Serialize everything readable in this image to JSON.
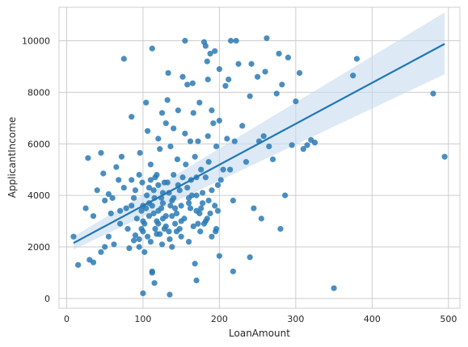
{
  "chart_data": {
    "type": "scatter",
    "title": "",
    "xlabel": "LoanAmount",
    "ylabel": "ApplicantIncome",
    "xlim": [
      -10,
      515
    ],
    "ylim": [
      -380,
      11300
    ],
    "xticks": [
      0,
      100,
      200,
      300,
      400,
      500
    ],
    "yticks": [
      0,
      2000,
      4000,
      6000,
      8000,
      10000
    ],
    "grid": true,
    "point_color": "#2a7ab5",
    "line_color": "#1f77b4",
    "band_color": "#c6dbef",
    "regression": {
      "x": [
        9,
        495
      ],
      "y": [
        2150,
        9880
      ],
      "ci_lower": [
        1900,
        8700
      ],
      "ci_upper": [
        2400,
        11100
      ]
    },
    "points": [
      [
        9,
        2400
      ],
      [
        15,
        1300
      ],
      [
        25,
        3500
      ],
      [
        28,
        5450
      ],
      [
        30,
        1500
      ],
      [
        35,
        1400
      ],
      [
        35,
        3200
      ],
      [
        40,
        4200
      ],
      [
        45,
        5650
      ],
      [
        45,
        1800
      ],
      [
        48,
        4850
      ],
      [
        50,
        2000
      ],
      [
        50,
        3800
      ],
      [
        55,
        4050
      ],
      [
        55,
        2400
      ],
      [
        58,
        3300
      ],
      [
        60,
        3900
      ],
      [
        62,
        2100
      ],
      [
        65,
        5100
      ],
      [
        68,
        4600
      ],
      [
        70,
        3400
      ],
      [
        70,
        2900
      ],
      [
        72,
        5500
      ],
      [
        75,
        9300
      ],
      [
        75,
        4300
      ],
      [
        78,
        3500
      ],
      [
        80,
        2700
      ],
      [
        82,
        1950
      ],
      [
        85,
        7050
      ],
      [
        85,
        3600
      ],
      [
        85,
        4600
      ],
      [
        88,
        2250
      ],
      [
        88,
        3900
      ],
      [
        90,
        2450
      ],
      [
        90,
        4200
      ],
      [
        92,
        3100
      ],
      [
        95,
        4800
      ],
      [
        95,
        2000
      ],
      [
        96,
        5650
      ],
      [
        98,
        3400
      ],
      [
        99,
        4500
      ],
      [
        100,
        3000
      ],
      [
        100,
        200
      ],
      [
        100,
        2600
      ],
      [
        102,
        1800
      ],
      [
        104,
        7600
      ],
      [
        105,
        4000
      ],
      [
        106,
        6500
      ],
      [
        108,
        3700
      ],
      [
        110,
        2200
      ],
      [
        110,
        5200
      ],
      [
        112,
        1050
      ],
      [
        112,
        1000
      ],
      [
        112,
        9700
      ],
      [
        114,
        3300
      ],
      [
        115,
        600
      ],
      [
        115,
        3900
      ],
      [
        116,
        4700
      ],
      [
        118,
        2500
      ],
      [
        120,
        6200
      ],
      [
        120,
        2900
      ],
      [
        120,
        4400
      ],
      [
        122,
        5800
      ],
      [
        124,
        3500
      ],
      [
        125,
        2100
      ],
      [
        125,
        7200
      ],
      [
        126,
        4100
      ],
      [
        128,
        2700
      ],
      [
        130,
        6800
      ],
      [
        130,
        3200
      ],
      [
        132,
        4500
      ],
      [
        132,
        7700
      ],
      [
        133,
        8750
      ],
      [
        135,
        2300
      ],
      [
        135,
        150
      ],
      [
        136,
        5900
      ],
      [
        138,
        3800
      ],
      [
        138,
        2000
      ],
      [
        140,
        6600
      ],
      [
        140,
        4800
      ],
      [
        142,
        3500
      ],
      [
        144,
        2600
      ],
      [
        145,
        5400
      ],
      [
        146,
        7300
      ],
      [
        148,
        4200
      ],
      [
        150,
        3000
      ],
      [
        150,
        2400
      ],
      [
        152,
        8600
      ],
      [
        155,
        6400
      ],
      [
        155,
        10000
      ],
      [
        156,
        5200
      ],
      [
        158,
        8300
      ],
      [
        160,
        3900
      ],
      [
        160,
        2200
      ],
      [
        162,
        6100
      ],
      [
        163,
        4600
      ],
      [
        165,
        8350
      ],
      [
        166,
        7200
      ],
      [
        168,
        5500
      ],
      [
        168,
        1350
      ],
      [
        170,
        3400
      ],
      [
        170,
        4000
      ],
      [
        170,
        700
      ],
      [
        172,
        6100
      ],
      [
        174,
        7600
      ],
      [
        175,
        2600
      ],
      [
        176,
        5000
      ],
      [
        178,
        3700
      ],
      [
        180,
        2900
      ],
      [
        180,
        9950
      ],
      [
        182,
        9800
      ],
      [
        182,
        4700
      ],
      [
        184,
        9200
      ],
      [
        185,
        6300
      ],
      [
        185,
        8500
      ],
      [
        186,
        5300
      ],
      [
        188,
        3300
      ],
      [
        188,
        9500
      ],
      [
        190,
        4200
      ],
      [
        190,
        7300
      ],
      [
        192,
        6800
      ],
      [
        194,
        9600
      ],
      [
        195,
        2600
      ],
      [
        196,
        5900
      ],
      [
        198,
        3400
      ],
      [
        200,
        6900
      ],
      [
        200,
        8900
      ],
      [
        200,
        1650
      ],
      [
        202,
        4600
      ],
      [
        205,
        5000
      ],
      [
        208,
        8250
      ],
      [
        210,
        6200
      ],
      [
        212,
        8500
      ],
      [
        214,
        5000
      ],
      [
        215,
        10000
      ],
      [
        218,
        3800
      ],
      [
        218,
        1050
      ],
      [
        220,
        6100
      ],
      [
        222,
        10000
      ],
      [
        225,
        9100
      ],
      [
        230,
        6700
      ],
      [
        235,
        5300
      ],
      [
        240,
        7850
      ],
      [
        240,
        1600
      ],
      [
        242,
        9100
      ],
      [
        245,
        3500
      ],
      [
        250,
        8600
      ],
      [
        252,
        6100
      ],
      [
        255,
        3100
      ],
      [
        258,
        6300
      ],
      [
        260,
        8800
      ],
      [
        262,
        10100
      ],
      [
        265,
        5900
      ],
      [
        270,
        5400
      ],
      [
        275,
        7950
      ],
      [
        278,
        9500
      ],
      [
        280,
        2700
      ],
      [
        282,
        8300
      ],
      [
        286,
        4000
      ],
      [
        290,
        9350
      ],
      [
        295,
        5950
      ],
      [
        300,
        7650
      ],
      [
        305,
        8750
      ],
      [
        310,
        5800
      ],
      [
        315,
        5950
      ],
      [
        320,
        6150
      ],
      [
        325,
        6050
      ],
      [
        350,
        400
      ],
      [
        375,
        8650
      ],
      [
        380,
        9300
      ],
      [
        480,
        7950
      ],
      [
        495,
        5500
      ],
      [
        95,
        2300
      ],
      [
        102,
        2900
      ],
      [
        108,
        4300
      ],
      [
        112,
        3600
      ],
      [
        118,
        3000
      ],
      [
        122,
        2500
      ],
      [
        126,
        3700
      ],
      [
        130,
        2800
      ],
      [
        134,
        4100
      ],
      [
        138,
        3200
      ],
      [
        142,
        2900
      ],
      [
        146,
        4400
      ],
      [
        150,
        3600
      ],
      [
        154,
        3100
      ],
      [
        158,
        4300
      ],
      [
        162,
        3500
      ],
      [
        166,
        2800
      ],
      [
        170,
        4700
      ],
      [
        174,
        3300
      ],
      [
        178,
        4100
      ],
      [
        182,
        3000
      ],
      [
        186,
        3800
      ],
      [
        190,
        2400
      ],
      [
        194,
        3600
      ],
      [
        198,
        4400
      ],
      [
        104,
        3500
      ],
      [
        114,
        4200
      ],
      [
        124,
        3900
      ],
      [
        134,
        2600
      ],
      [
        144,
        3300
      ],
      [
        98,
        2700
      ],
      [
        108,
        3200
      ],
      [
        118,
        4800
      ],
      [
        128,
        4500
      ],
      [
        140,
        3900
      ],
      [
        152,
        4700
      ],
      [
        164,
        4000
      ],
      [
        176,
        3500
      ],
      [
        106,
        2400
      ],
      [
        116,
        2700
      ],
      [
        126,
        3100
      ],
      [
        136,
        3600
      ],
      [
        148,
        2700
      ],
      [
        160,
        3700
      ],
      [
        172,
        2900
      ],
      [
        184,
        3100
      ],
      [
        196,
        2700
      ],
      [
        100,
        3600
      ],
      [
        110,
        4600
      ],
      [
        120,
        3400
      ]
    ]
  }
}
